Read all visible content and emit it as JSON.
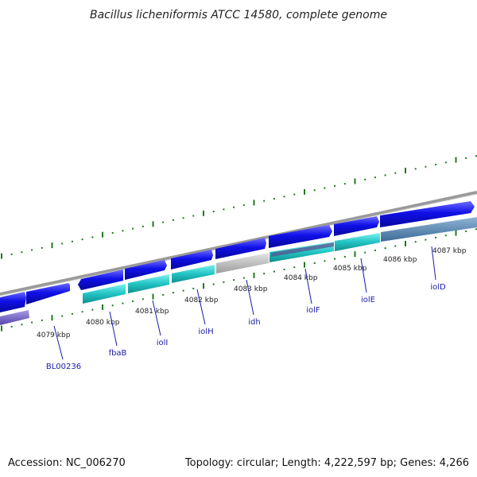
{
  "title": "Bacillus licheniformis ATCC 14580, complete genome",
  "footer": {
    "accession": "Accession: NC_006270",
    "stats": "Topology: circular; Length: 4,222,597 bp; Genes: 4,266"
  },
  "colors": {
    "forward_gene": "#1a1ae6",
    "reverse_gene": "#2ec8c8",
    "pseudo_gene": "#bdbdbd",
    "backbone": "#888888",
    "gc_dots": "#1e7a1e",
    "label": "#1a1aa8"
  },
  "scale_labels": [
    "4079 kbp",
    "4080 kbp",
    "4081 kbp",
    "4082 kbp",
    "4083 kbp",
    "4084 kbp",
    "4085 kbp",
    "4086 kbp",
    "4087 kbp"
  ],
  "gene_labels": [
    "BL00236",
    "fbaB",
    "iolI",
    "iolH",
    "idh",
    "iolF",
    "iolE",
    "iolD"
  ]
}
